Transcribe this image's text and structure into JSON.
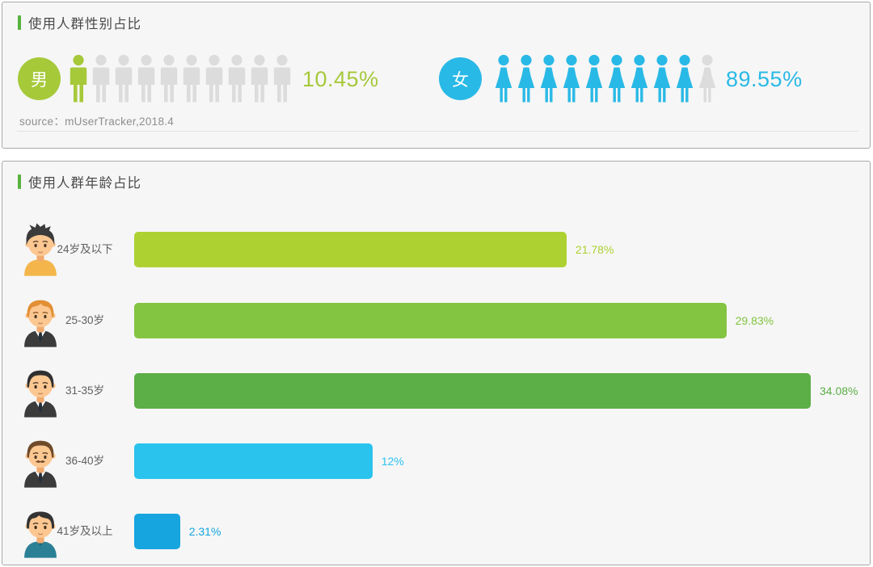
{
  "ui": {
    "accent_color": "#58b33d",
    "panel_bg": "#f6f6f6",
    "panel_border": "#a9a9a9"
  },
  "chart_data": [
    {
      "type": "pictogram",
      "title": "使用人群性别占比",
      "categories": [
        "男",
        "女"
      ],
      "values": [
        10.45,
        89.55
      ],
      "value_labels": [
        "10.45%",
        "89.55%"
      ],
      "colors": [
        "#a6c93a",
        "#29b9e6"
      ],
      "empty_icon_color": "#dcdcdc",
      "icons_per_category": 10,
      "icons_filled": [
        1,
        9
      ],
      "source": "source：mUserTracker,2018.4"
    },
    {
      "type": "bar",
      "orientation": "horizontal",
      "title": "使用人群年龄占比",
      "categories": [
        "24岁及以下",
        "25-30岁",
        "31-35岁",
        "36-40岁",
        "41岁及以上"
      ],
      "values": [
        21.78,
        29.83,
        34.08,
        12,
        2.31
      ],
      "value_labels": [
        "21.78%",
        "29.83%",
        "34.08%",
        "12%",
        "2.31%"
      ],
      "bar_colors": [
        "#aed132",
        "#83c441",
        "#5cae46",
        "#2ac3ee",
        "#16a5df"
      ],
      "xlim": [
        0,
        34.08
      ],
      "grid": false,
      "legend": false
    }
  ]
}
